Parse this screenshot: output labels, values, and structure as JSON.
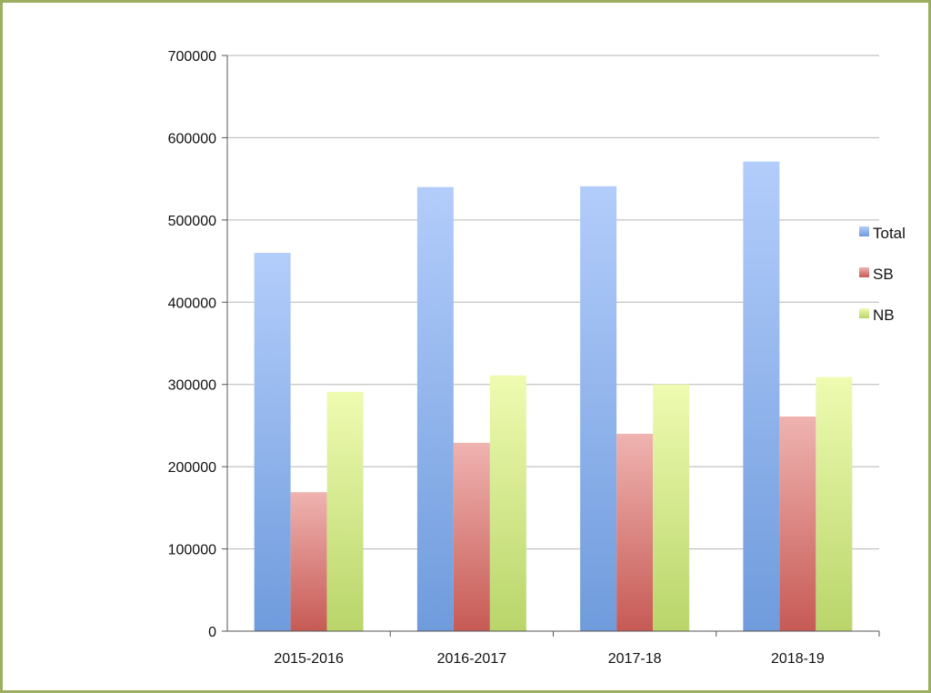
{
  "chart_data": {
    "type": "bar",
    "categories": [
      "2015-2016",
      "2016-2017",
      "2017-18",
      "2018-19"
    ],
    "series": [
      {
        "name": "Total",
        "values": [
          460000,
          540000,
          541000,
          571000
        ],
        "color_top": "#b3cdfb",
        "color_bottom": "#6f9bdc"
      },
      {
        "name": "SB",
        "values": [
          169000,
          229000,
          240000,
          261000
        ],
        "color_top": "#efb3b0",
        "color_bottom": "#c75a55"
      },
      {
        "name": "NB",
        "values": [
          291000,
          311000,
          300000,
          309000
        ],
        "color_top": "#eefbb1",
        "color_bottom": "#b9d56a"
      }
    ],
    "ylim": [
      0,
      700000
    ],
    "yticks": [
      0,
      100000,
      200000,
      300000,
      400000,
      500000,
      600000,
      700000
    ],
    "grid": true,
    "legend_position": "right",
    "frame_color": "#9bae62"
  }
}
